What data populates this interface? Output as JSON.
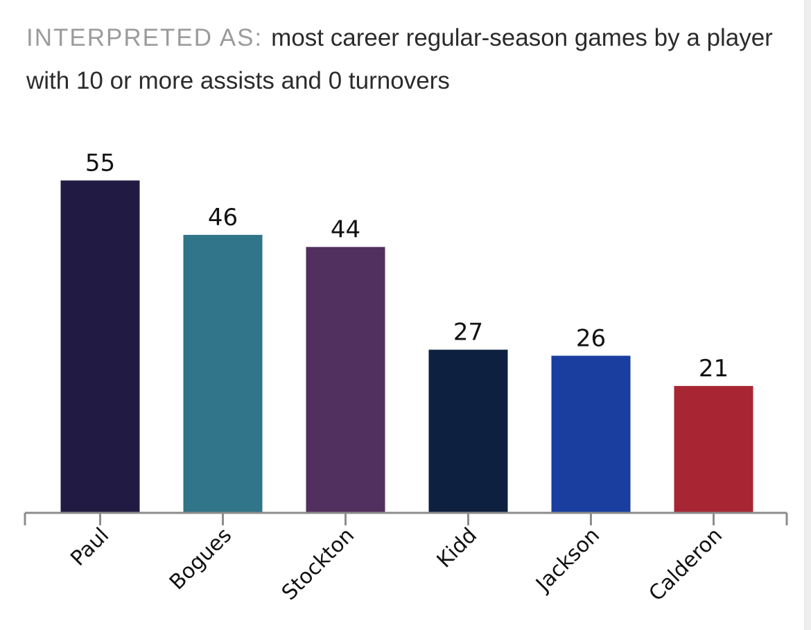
{
  "header": {
    "prefix": "INTERPRETED AS:",
    "text": "most career regular-season games by a player with 10 or more assists and 0 turnovers"
  },
  "chart_data": {
    "type": "bar",
    "title": "most career regular-season games by a player with 10 or more assists and 0 turnovers",
    "xlabel": "",
    "ylabel": "",
    "ylim": [
      0,
      60
    ],
    "grid": false,
    "categories": [
      "Paul",
      "Bogues",
      "Stockton",
      "Kidd",
      "Jackson",
      "Calderon"
    ],
    "values": [
      55,
      46,
      44,
      27,
      26,
      21
    ],
    "colors": [
      "#211b44",
      "#307589",
      "#512f5f",
      "#0e2040",
      "#1a3ea0",
      "#a82634"
    ]
  }
}
